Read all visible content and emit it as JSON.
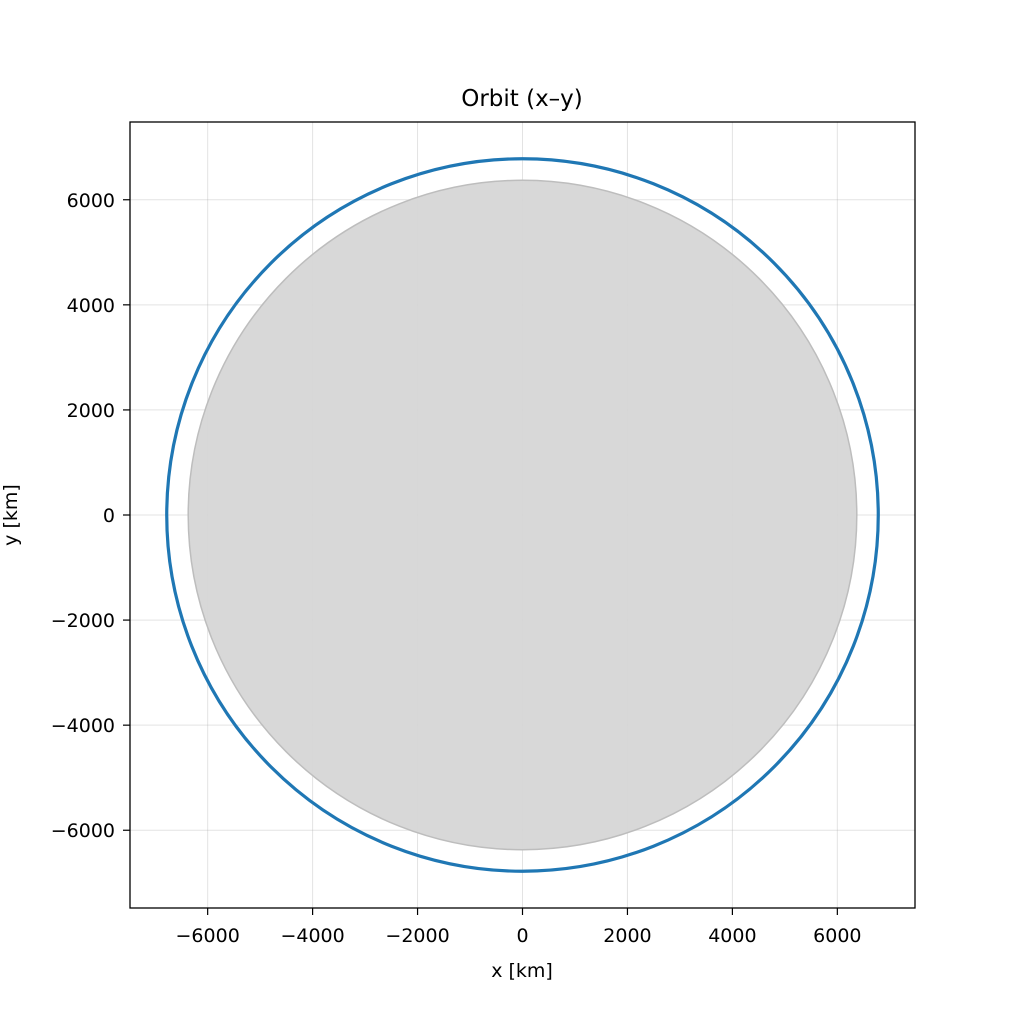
{
  "chart_data": {
    "type": "line",
    "title": "Orbit (x–y)",
    "xlabel": "x [km]",
    "ylabel": "y [km]",
    "xlim": [
      -7480,
      7480
    ],
    "ylim": [
      -7480,
      7480
    ],
    "xticks": [
      -6000,
      -4000,
      -2000,
      0,
      2000,
      4000,
      6000
    ],
    "yticks": [
      -6000,
      -4000,
      -2000,
      0,
      2000,
      4000,
      6000
    ],
    "xtick_labels": [
      "−6000",
      "−4000",
      "−2000",
      "0",
      "2000",
      "4000",
      "6000"
    ],
    "ytick_labels": [
      "−6000",
      "−4000",
      "−2000",
      "0",
      "2000",
      "4000",
      "6000"
    ],
    "grid": true,
    "aspect": "equal",
    "body": {
      "shape": "circle",
      "center": [
        0,
        0
      ],
      "radius": 6371,
      "fill": "#d6d6d6",
      "edge": "#bdbdbd"
    },
    "series": [
      {
        "shape": "circle",
        "center": [
          0,
          0
        ],
        "radius": 6780,
        "color": "#1f77b4"
      }
    ]
  }
}
